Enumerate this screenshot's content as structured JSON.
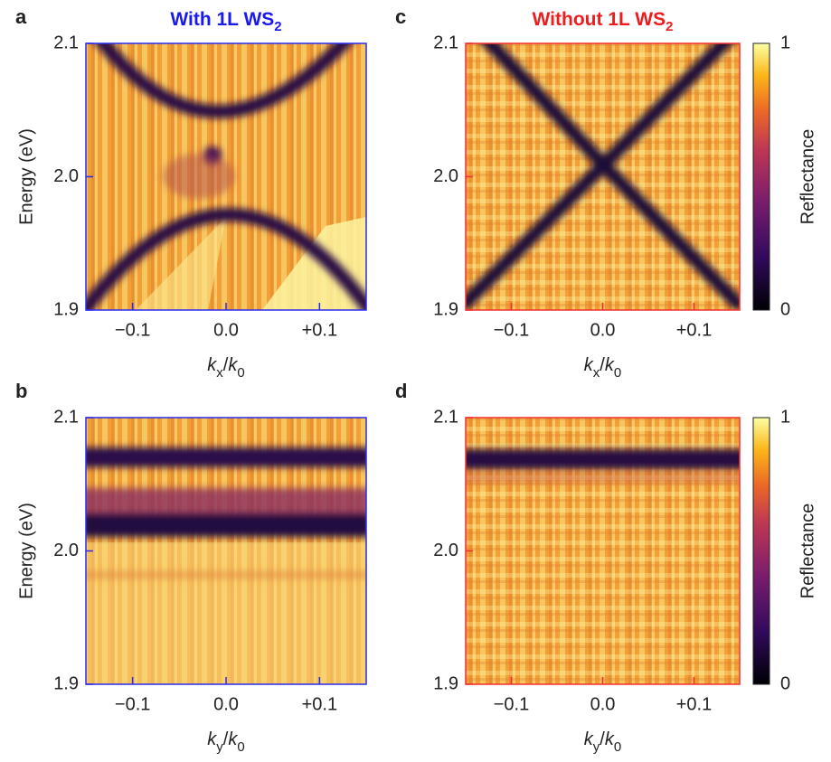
{
  "chart_data": [
    {
      "type": "heatmap",
      "panel_label": "a",
      "title": [
        {
          "text": "With 1L WS"
        },
        {
          "text": "2",
          "style": "sub"
        }
      ],
      "title_color": "#1a1aee",
      "frame_color": "#2b2bf0",
      "ylabel": "Energy (eV)",
      "xlabel": [
        {
          "text": "k",
          "style": "italic"
        },
        {
          "text": "x",
          "style": "sub"
        },
        {
          "text": "/"
        },
        {
          "text": "k",
          "style": "italic"
        },
        {
          "text": "0",
          "style": "sub"
        }
      ],
      "xlim": [
        -0.15,
        0.15
      ],
      "xticks": [
        {
          "value": -0.1,
          "label": "−0.1"
        },
        {
          "value": 0,
          "label": "0.0"
        },
        {
          "value": 0.1,
          "label": "+0.1"
        }
      ],
      "ylim": [
        1.9,
        2.1
      ],
      "yticks": [
        {
          "value": 1.9,
          "label": "1.9"
        },
        {
          "value": 2,
          "label": "2.0"
        },
        2.1
      ]
    },
    {
      "type": "heatmap",
      "panel_label": "c",
      "title": [
        {
          "text": "Without 1L WS"
        },
        {
          "text": "2",
          "style": "sub"
        }
      ],
      "title_color": "#ee1c1c",
      "frame_color": "#f03030",
      "xlabel": [
        {
          "text": "k",
          "style": "italic"
        },
        {
          "text": "x",
          "style": "sub"
        },
        {
          "text": "/"
        },
        {
          "text": "k",
          "style": "italic"
        },
        {
          "text": "0",
          "style": "sub"
        }
      ],
      "xlim": [
        -0.15,
        0.15
      ],
      "xticks": [
        {
          "value": -0.1,
          "label": "−0.1"
        },
        {
          "value": 0,
          "label": "0.0"
        },
        {
          "value": 0.1,
          "label": "+0.1"
        }
      ],
      "ylim": [
        1.9,
        2.1
      ],
      "yticks": [
        {
          "value": 1.9,
          "label": "1.9"
        },
        {
          "value": 2,
          "label": "2.0"
        },
        2.1
      ],
      "colorbar": {
        "label": "Reflectance",
        "lim": [
          0,
          1
        ],
        "ticks": [
          0,
          1
        ],
        "colormap": "inferno"
      }
    },
    {
      "type": "heatmap",
      "panel_label": "b",
      "frame_color": "#2b2bf0",
      "ylabel": "Energy (eV)",
      "xlabel": [
        {
          "text": "k",
          "style": "italic"
        },
        {
          "text": "y",
          "style": "sub"
        },
        {
          "text": "/"
        },
        {
          "text": "k",
          "style": "italic"
        },
        {
          "text": "0",
          "style": "sub"
        }
      ],
      "xlim": [
        -0.15,
        0.15
      ],
      "xticks": [
        {
          "value": -0.1,
          "label": "−0.1"
        },
        {
          "value": 0,
          "label": "0.0"
        },
        {
          "value": 0.1,
          "label": "+0.1"
        }
      ],
      "ylim": [
        1.9,
        2.1
      ],
      "yticks": [
        {
          "value": 1.9,
          "label": "1.9"
        },
        {
          "value": 2,
          "label": "2.0"
        },
        2.1
      ]
    },
    {
      "type": "heatmap",
      "panel_label": "d",
      "frame_color": "#f03030",
      "xlabel": [
        {
          "text": "k",
          "style": "italic"
        },
        {
          "text": "y",
          "style": "sub"
        },
        {
          "text": "/"
        },
        {
          "text": "k",
          "style": "italic"
        },
        {
          "text": "0",
          "style": "sub"
        }
      ],
      "xlim": [
        -0.15,
        0.15
      ],
      "xticks": [
        {
          "value": -0.1,
          "label": "−0.1"
        },
        {
          "value": 0,
          "label": "0.0"
        },
        {
          "value": 0.1,
          "label": "+0.1"
        }
      ],
      "ylim": [
        1.9,
        2.1
      ],
      "yticks": [
        {
          "value": 1.9,
          "label": "1.9"
        },
        {
          "value": 2,
          "label": "2.0"
        },
        2.1
      ],
      "colorbar": {
        "label": "Reflectance",
        "lim": [
          0,
          1
        ],
        "ticks": [
          0,
          1
        ],
        "colormap": "inferno"
      }
    }
  ]
}
